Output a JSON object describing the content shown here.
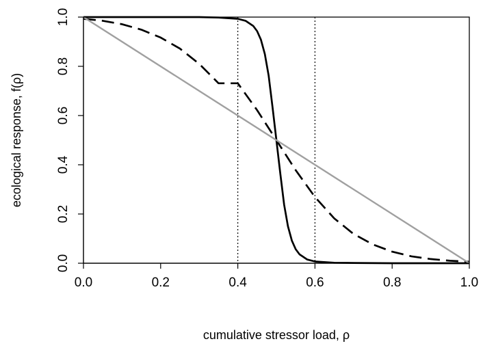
{
  "chart_data": {
    "type": "line",
    "title": "",
    "xlabel": "cumulative stressor load, ρ",
    "ylabel": "ecological response, f(ρ)",
    "xlim": [
      0,
      1
    ],
    "ylim": [
      0,
      1
    ],
    "x_ticks": [
      0.0,
      0.2,
      0.4,
      0.6,
      0.8,
      1.0
    ],
    "x_tick_labels": [
      "0.0",
      "0.2",
      "0.4",
      "0.6",
      "0.8",
      "1.0"
    ],
    "y_ticks": [
      0.0,
      0.2,
      0.4,
      0.6,
      0.8,
      1.0
    ],
    "y_tick_labels": [
      "0.0",
      "0.2",
      "0.4",
      "0.6",
      "0.8",
      "1.0"
    ],
    "grid": false,
    "legend": false,
    "reference_lines": [
      {
        "axis": "x",
        "value": 0.4,
        "style": "dotted",
        "color": "#000000"
      },
      {
        "axis": "x",
        "value": 0.6,
        "style": "dotted",
        "color": "#000000"
      }
    ],
    "series": [
      {
        "style": "solid",
        "color": "#000000",
        "x": [
          0.0,
          0.05,
          0.1,
          0.15,
          0.2,
          0.25,
          0.3,
          0.35,
          0.4,
          0.42,
          0.44,
          0.45,
          0.46,
          0.47,
          0.48,
          0.49,
          0.5,
          0.51,
          0.52,
          0.53,
          0.54,
          0.55,
          0.56,
          0.58,
          0.6,
          0.65,
          0.7,
          0.8,
          0.9,
          1.0
        ],
        "y": [
          1.0,
          1.0,
          1.0,
          1.0,
          1.0,
          1.0,
          1.0,
          0.998,
          0.993,
          0.985,
          0.964,
          0.943,
          0.908,
          0.85,
          0.762,
          0.633,
          0.5,
          0.367,
          0.238,
          0.15,
          0.092,
          0.057,
          0.036,
          0.015,
          0.007,
          0.002,
          0.001,
          0.0,
          0.0,
          0.0
        ]
      },
      {
        "style": "dashed",
        "color": "#000000",
        "x": [
          0.0,
          0.05,
          0.1,
          0.15,
          0.2,
          0.25,
          0.3,
          0.35,
          0.4,
          0.45,
          0.5,
          0.55,
          0.6,
          0.65,
          0.7,
          0.75,
          0.8,
          0.85,
          0.9,
          0.95,
          1.0
        ],
        "y": [
          0.993,
          0.985,
          0.971,
          0.949,
          0.917,
          0.872,
          0.81,
          0.731,
          0.731,
          0.622,
          0.5,
          0.378,
          0.269,
          0.182,
          0.119,
          0.076,
          0.047,
          0.028,
          0.017,
          0.01,
          0.006
        ]
      },
      {
        "style": "solid",
        "color": "#a0a0a0",
        "x": [
          0.0,
          1.0
        ],
        "y": [
          1.0,
          0.0
        ]
      }
    ]
  }
}
